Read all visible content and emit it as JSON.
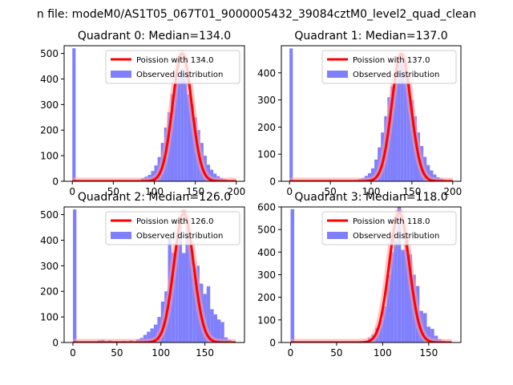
{
  "figure": {
    "suptitle": "n file: modeM0/AS1T05_067T01_9000005432_39084cztM0_level2_quad_clean"
  },
  "colors": {
    "hist": "#8080ff",
    "curve": "#ff0000",
    "curve_glow": "#ff9a9a",
    "axis": "#000000"
  },
  "legend_entries": {
    "observed": "Observed distribution"
  },
  "chart_data": [
    {
      "type": "bar",
      "title": "Quadrant 0: Median=134.0",
      "median": 134.0,
      "legend_poisson": "Poission with 134.0",
      "xlim": [
        -10,
        210
      ],
      "ylim": [
        0,
        530
      ],
      "xticks": [
        0,
        50,
        100,
        150,
        200
      ],
      "yticks": [
        0,
        100,
        200,
        300,
        400,
        500
      ],
      "bin_width": 4,
      "bins": [
        [
          0,
          520
        ],
        [
          80,
          5
        ],
        [
          84,
          12
        ],
        [
          88,
          18
        ],
        [
          92,
          25
        ],
        [
          96,
          40
        ],
        [
          100,
          62
        ],
        [
          104,
          95
        ],
        [
          108,
          150
        ],
        [
          112,
          210
        ],
        [
          116,
          270
        ],
        [
          120,
          340
        ],
        [
          124,
          390
        ],
        [
          128,
          405
        ],
        [
          132,
          440
        ],
        [
          136,
          425
        ],
        [
          140,
          340
        ],
        [
          144,
          300
        ],
        [
          148,
          250
        ],
        [
          152,
          200
        ],
        [
          156,
          150
        ],
        [
          160,
          100
        ],
        [
          164,
          65
        ],
        [
          168,
          45
        ],
        [
          172,
          30
        ],
        [
          176,
          20
        ],
        [
          180,
          12
        ],
        [
          184,
          8
        ],
        [
          188,
          5
        ],
        [
          192,
          3
        ],
        [
          196,
          2
        ]
      ],
      "curve_peak": 500,
      "curve_sigma": 11.6,
      "curve_range": [
        0,
        200
      ]
    },
    {
      "type": "bar",
      "title": "Quadrant 1: Median=137.0",
      "median": 137.0,
      "legend_poisson": "Poission with 137.0",
      "xlim": [
        -10,
        210
      ],
      "ylim": [
        0,
        500
      ],
      "xticks": [
        0,
        50,
        100,
        150,
        200
      ],
      "yticks": [
        0,
        100,
        200,
        300,
        400
      ],
      "bin_width": 4,
      "bins": [
        [
          0,
          490
        ],
        [
          80,
          5
        ],
        [
          84,
          8
        ],
        [
          88,
          12
        ],
        [
          92,
          20
        ],
        [
          96,
          30
        ],
        [
          100,
          48
        ],
        [
          104,
          80
        ],
        [
          108,
          125
        ],
        [
          112,
          180
        ],
        [
          116,
          240
        ],
        [
          120,
          310
        ],
        [
          124,
          350
        ],
        [
          128,
          400
        ],
        [
          132,
          450
        ],
        [
          136,
          470
        ],
        [
          140,
          440
        ],
        [
          144,
          370
        ],
        [
          148,
          300
        ],
        [
          152,
          240
        ],
        [
          156,
          180
        ],
        [
          160,
          130
        ],
        [
          164,
          90
        ],
        [
          168,
          60
        ],
        [
          172,
          40
        ],
        [
          176,
          25
        ],
        [
          180,
          15
        ],
        [
          184,
          10
        ],
        [
          188,
          6
        ],
        [
          192,
          3
        ],
        [
          196,
          2
        ]
      ],
      "curve_peak": 470,
      "curve_sigma": 11.7,
      "curve_range": [
        0,
        200
      ]
    },
    {
      "type": "bar",
      "title": "Quadrant 2: Median=126.0",
      "median": 126.0,
      "legend_poisson": "Poission with 126.0",
      "xlim": [
        -10,
        195
      ],
      "ylim": [
        0,
        530
      ],
      "xticks": [
        0,
        50,
        100,
        150
      ],
      "yticks": [
        0,
        100,
        200,
        300,
        400,
        500
      ],
      "bin_width": 4,
      "bins": [
        [
          0,
          520
        ],
        [
          28,
          8
        ],
        [
          32,
          10
        ],
        [
          40,
          8
        ],
        [
          48,
          5
        ],
        [
          56,
          6
        ],
        [
          64,
          8
        ],
        [
          72,
          12
        ],
        [
          76,
          18
        ],
        [
          80,
          30
        ],
        [
          84,
          42
        ],
        [
          88,
          55
        ],
        [
          92,
          70
        ],
        [
          96,
          100
        ],
        [
          100,
          160
        ],
        [
          104,
          200
        ],
        [
          108,
          410
        ],
        [
          112,
          350
        ],
        [
          116,
          390
        ],
        [
          120,
          470
        ],
        [
          124,
          350
        ],
        [
          128,
          450
        ],
        [
          132,
          390
        ],
        [
          136,
          290
        ],
        [
          140,
          300
        ],
        [
          144,
          230
        ],
        [
          148,
          190
        ],
        [
          152,
          220
        ],
        [
          156,
          130
        ],
        [
          160,
          110
        ],
        [
          164,
          90
        ],
        [
          168,
          80
        ],
        [
          172,
          20
        ],
        [
          176,
          10
        ],
        [
          180,
          5
        ]
      ],
      "curve_peak": 505,
      "curve_sigma": 11.2,
      "curve_range": [
        0,
        185
      ]
    },
    {
      "type": "bar",
      "title": "Quadrant 3: Median=118.0",
      "median": 118.0,
      "legend_poisson": "Poission with 118.0",
      "xlim": [
        -10,
        185
      ],
      "ylim": [
        0,
        600
      ],
      "xticks": [
        0,
        50,
        100,
        150
      ],
      "yticks": [
        0,
        100,
        200,
        300,
        400,
        500,
        600
      ],
      "bin_width": 4,
      "bins": [
        [
          0,
          590
        ],
        [
          80,
          8
        ],
        [
          84,
          20
        ],
        [
          88,
          35
        ],
        [
          92,
          65
        ],
        [
          96,
          100
        ],
        [
          100,
          160
        ],
        [
          104,
          300
        ],
        [
          108,
          400
        ],
        [
          112,
          450
        ],
        [
          116,
          600
        ],
        [
          120,
          410
        ],
        [
          124,
          480
        ],
        [
          128,
          390
        ],
        [
          132,
          300
        ],
        [
          136,
          250
        ],
        [
          140,
          140
        ],
        [
          144,
          130
        ],
        [
          148,
          70
        ],
        [
          152,
          60
        ],
        [
          156,
          30
        ],
        [
          160,
          15
        ],
        [
          164,
          8
        ],
        [
          168,
          3
        ]
      ],
      "curve_peak": 575,
      "curve_sigma": 10.9,
      "curve_range": [
        0,
        175
      ]
    }
  ]
}
